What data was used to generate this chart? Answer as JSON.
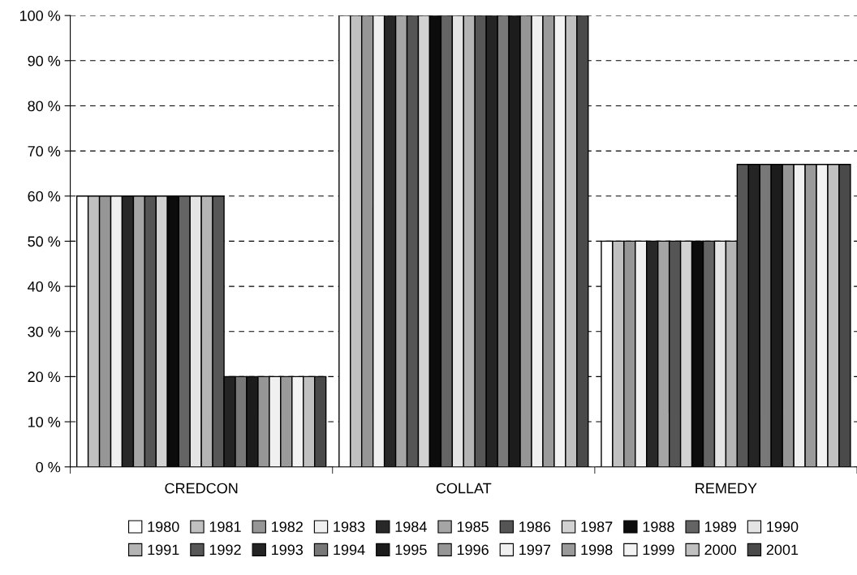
{
  "chart_data": {
    "type": "bar",
    "categories": [
      "CREDCON",
      "COLLAT",
      "REMEDY"
    ],
    "ylim": [
      0,
      100
    ],
    "yticks": [
      {
        "value": 0,
        "label": "0 %"
      },
      {
        "value": 10,
        "label": "10 %"
      },
      {
        "value": 20,
        "label": "20 %"
      },
      {
        "value": 30,
        "label": "30 %"
      },
      {
        "value": 40,
        "label": "40 %"
      },
      {
        "value": 50,
        "label": "50 %"
      },
      {
        "value": 60,
        "label": "60 %"
      },
      {
        "value": 70,
        "label": "70 %"
      },
      {
        "value": 80,
        "label": "80 %"
      },
      {
        "value": 90,
        "label": "90 %"
      },
      {
        "value": 100,
        "label": "100 %"
      }
    ],
    "grid": "y",
    "legend": "bottom",
    "series": [
      {
        "name": "1980",
        "color": "#ffffff",
        "values": [
          60,
          100,
          50
        ]
      },
      {
        "name": "1981",
        "color": "#c0c0c0",
        "values": [
          60,
          100,
          50
        ]
      },
      {
        "name": "1982",
        "color": "#969696",
        "values": [
          60,
          100,
          50
        ]
      },
      {
        "name": "1983",
        "color": "#f0f0f0",
        "values": [
          60,
          100,
          50
        ]
      },
      {
        "name": "1984",
        "color": "#282828",
        "values": [
          60,
          100,
          50
        ]
      },
      {
        "name": "1985",
        "color": "#a5a5a5",
        "values": [
          60,
          100,
          50
        ]
      },
      {
        "name": "1986",
        "color": "#555555",
        "values": [
          60,
          100,
          50
        ]
      },
      {
        "name": "1987",
        "color": "#d2d2d2",
        "values": [
          60,
          100,
          50
        ]
      },
      {
        "name": "1988",
        "color": "#0c0c0c",
        "values": [
          60,
          100,
          50
        ]
      },
      {
        "name": "1989",
        "color": "#646464",
        "values": [
          60,
          100,
          50
        ]
      },
      {
        "name": "1990",
        "color": "#e4e4e4",
        "values": [
          60,
          100,
          50
        ]
      },
      {
        "name": "1991",
        "color": "#b4b4b4",
        "values": [
          60,
          100,
          50
        ]
      },
      {
        "name": "1992",
        "color": "#575757",
        "values": [
          60,
          100,
          67
        ]
      },
      {
        "name": "1993",
        "color": "#242424",
        "values": [
          20,
          100,
          67
        ]
      },
      {
        "name": "1994",
        "color": "#787878",
        "values": [
          20,
          100,
          67
        ]
      },
      {
        "name": "1995",
        "color": "#1c1c1c",
        "values": [
          20,
          100,
          67
        ]
      },
      {
        "name": "1996",
        "color": "#969696",
        "values": [
          20,
          100,
          67
        ]
      },
      {
        "name": "1997",
        "color": "#f0f0f0",
        "values": [
          20,
          100,
          67
        ]
      },
      {
        "name": "1998",
        "color": "#9a9a9a",
        "values": [
          20,
          100,
          67
        ]
      },
      {
        "name": "1999",
        "color": "#f3f3f3",
        "values": [
          20,
          100,
          67
        ]
      },
      {
        "name": "2000",
        "color": "#c0c0c0",
        "values": [
          20,
          100,
          67
        ]
      },
      {
        "name": "2001",
        "color": "#4a4a4a",
        "values": [
          20,
          100,
          67
        ]
      }
    ]
  }
}
